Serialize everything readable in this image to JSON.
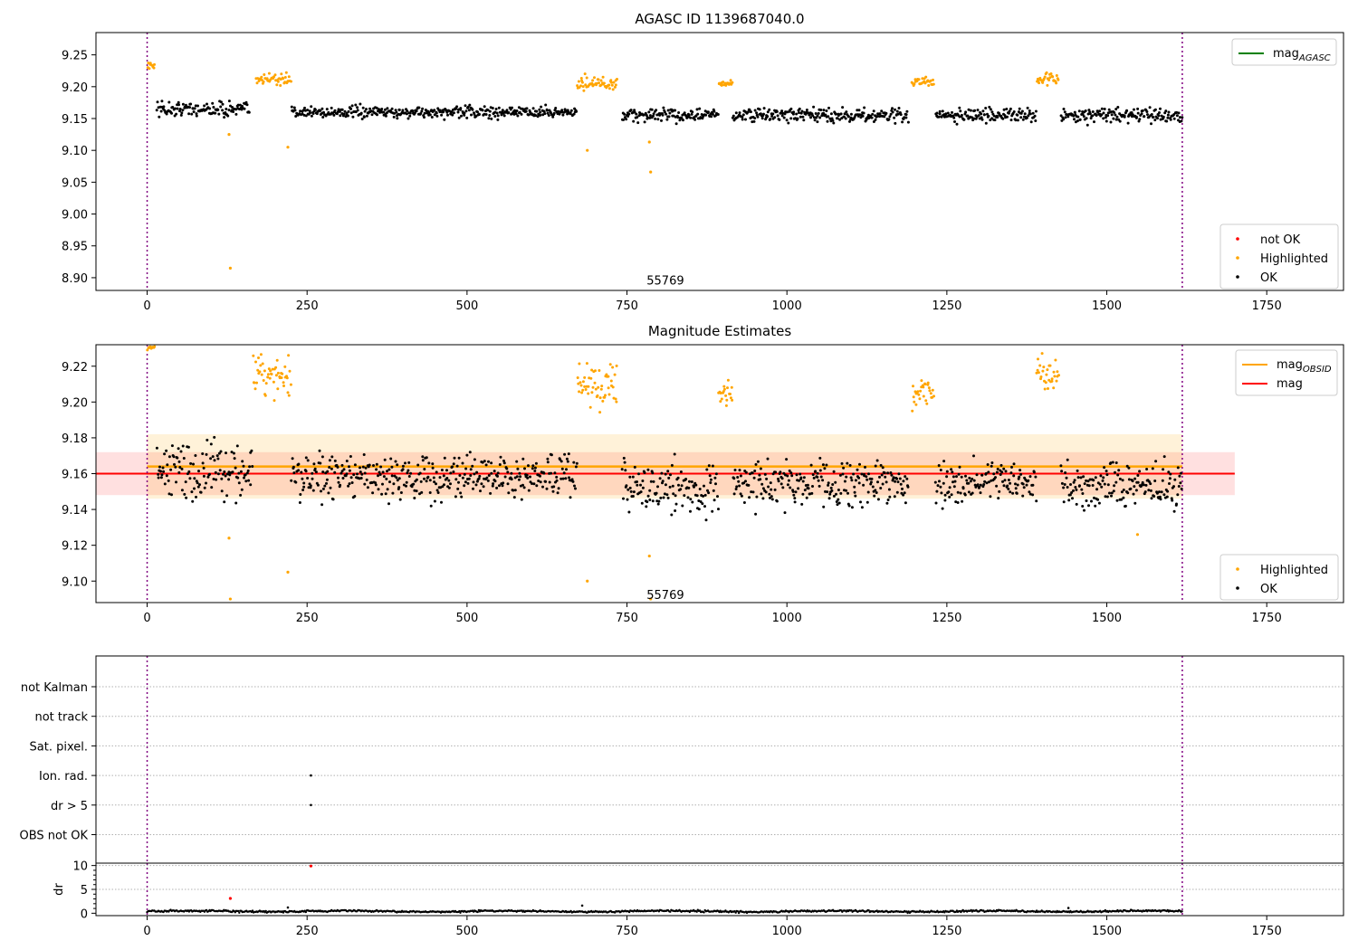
{
  "chart_data": [
    {
      "type": "scatter",
      "title": "AGASC ID 1139687040.0",
      "xlim": [
        -80,
        1870
      ],
      "ylim": [
        8.88,
        9.285
      ],
      "xticks": [
        0,
        250,
        500,
        750,
        1000,
        1250,
        1500,
        1750
      ],
      "yticks": [
        8.9,
        8.95,
        9.0,
        9.05,
        9.1,
        9.15,
        9.2,
        9.25
      ],
      "vlines": [
        0,
        1618
      ],
      "annotation": {
        "text": "55769",
        "x": 810,
        "y": 8.895
      },
      "legend_top": [
        {
          "label": "mag",
          "sub": "AGASC",
          "color": "#008000",
          "kind": "line"
        }
      ],
      "legend_bottom": [
        {
          "label": "not OK",
          "color": "#ff0000",
          "kind": "dot"
        },
        {
          "label": "Highlighted",
          "color": "#ffa500",
          "kind": "dot"
        },
        {
          "label": "OK",
          "color": "#000000",
          "kind": "dot"
        }
      ],
      "level": 9.158,
      "spread": 0.009,
      "highlight_segments": [
        [
          0,
          12,
          9.233,
          0.008
        ],
        [
          170,
          225,
          9.212,
          0.009
        ],
        [
          672,
          735,
          9.205,
          0.01
        ],
        [
          893,
          915,
          9.205,
          0.005
        ],
        [
          1195,
          1230,
          9.207,
          0.007
        ],
        [
          1390,
          1425,
          9.212,
          0.01
        ]
      ],
      "ok_segments": [
        [
          15,
          160,
          9.165,
          0.012
        ],
        [
          225,
          672,
          9.16,
          0.009
        ],
        [
          742,
          893,
          9.155,
          0.01
        ],
        [
          915,
          1190,
          9.155,
          0.01
        ],
        [
          1232,
          1390,
          9.155,
          0.01
        ],
        [
          1428,
          1618,
          9.155,
          0.01
        ]
      ],
      "outliers": [
        [
          130,
          8.915
        ],
        [
          220,
          9.105
        ],
        [
          688,
          9.1
        ],
        [
          785,
          9.113
        ],
        [
          787,
          9.066
        ],
        [
          128,
          9.125
        ]
      ]
    },
    {
      "type": "scatter",
      "title": "Magnitude Estimates",
      "xlim": [
        -80,
        1870
      ],
      "ylim": [
        9.088,
        9.232
      ],
      "xticks": [
        0,
        250,
        500,
        750,
        1000,
        1250,
        1500,
        1750
      ],
      "yticks": [
        9.1,
        9.12,
        9.14,
        9.16,
        9.18,
        9.2,
        9.22
      ],
      "vlines": [
        0,
        1618
      ],
      "annotation": {
        "text": "55769",
        "x": 810,
        "y": 9.092
      },
      "legend_top": [
        {
          "label": "mag",
          "sub": "OBSID",
          "color": "#ffa500",
          "kind": "line"
        },
        {
          "label": "mag",
          "sub": "",
          "color": "#ff0000",
          "kind": "line"
        }
      ],
      "legend_bottom": [
        {
          "label": "Highlighted",
          "color": "#ffa500",
          "kind": "dot"
        },
        {
          "label": "OK",
          "color": "#000000",
          "kind": "dot"
        }
      ],
      "mag_line": 9.16,
      "mag_band": [
        9.148,
        9.172
      ],
      "mag_obsid_line": 9.164,
      "mag_obsid_band": [
        9.146,
        9.182
      ],
      "level": 9.16,
      "spread": 0.013,
      "highlight_segments": [
        [
          0,
          12,
          9.232,
          0.003
        ],
        [
          165,
          225,
          9.215,
          0.012
        ],
        [
          672,
          735,
          9.21,
          0.014
        ],
        [
          893,
          915,
          9.205,
          0.007
        ],
        [
          1195,
          1230,
          9.205,
          0.009
        ],
        [
          1390,
          1425,
          9.215,
          0.01
        ]
      ],
      "ok_segments": [
        [
          15,
          165,
          9.162,
          0.016
        ],
        [
          225,
          672,
          9.158,
          0.012
        ],
        [
          742,
          893,
          9.152,
          0.013
        ],
        [
          915,
          1190,
          9.155,
          0.012
        ],
        [
          1232,
          1390,
          9.155,
          0.012
        ],
        [
          1428,
          1618,
          9.153,
          0.012
        ]
      ],
      "outliers": [
        [
          130,
          9.09
        ],
        [
          220,
          9.105
        ],
        [
          688,
          9.1
        ],
        [
          785,
          9.114
        ],
        [
          787,
          9.09
        ],
        [
          1548,
          9.126
        ],
        [
          128,
          9.124
        ]
      ]
    },
    {
      "type": "scatter",
      "title": "",
      "xlim": [
        -80,
        1870
      ],
      "categories": [
        "not Kalman",
        "not track",
        "Sat. pixel.",
        "Ion. rad.",
        "dr > 5",
        "OBS not OK"
      ],
      "vlines": [
        0,
        1618
      ],
      "flag_points": [
        {
          "category": "Ion. rad.",
          "x": 256
        },
        {
          "category": "dr > 5",
          "x": 256
        }
      ]
    },
    {
      "type": "scatter",
      "title": "",
      "ylabel": "dr",
      "xlim": [
        -80,
        1870
      ],
      "ylim": [
        -0.5,
        10.5
      ],
      "xticks": [
        0,
        250,
        500,
        750,
        1000,
        1250,
        1500,
        1750
      ],
      "yticks": [
        0,
        5,
        10
      ],
      "vlines": [
        0,
        1618
      ],
      "baseline": 0.4,
      "not_ok_points": [
        [
          130,
          3.1
        ],
        [
          256,
          9.9
        ]
      ],
      "ok_outliers": [
        [
          220,
          1.2
        ],
        [
          680,
          1.6
        ],
        [
          1440,
          1.1
        ]
      ]
    }
  ]
}
